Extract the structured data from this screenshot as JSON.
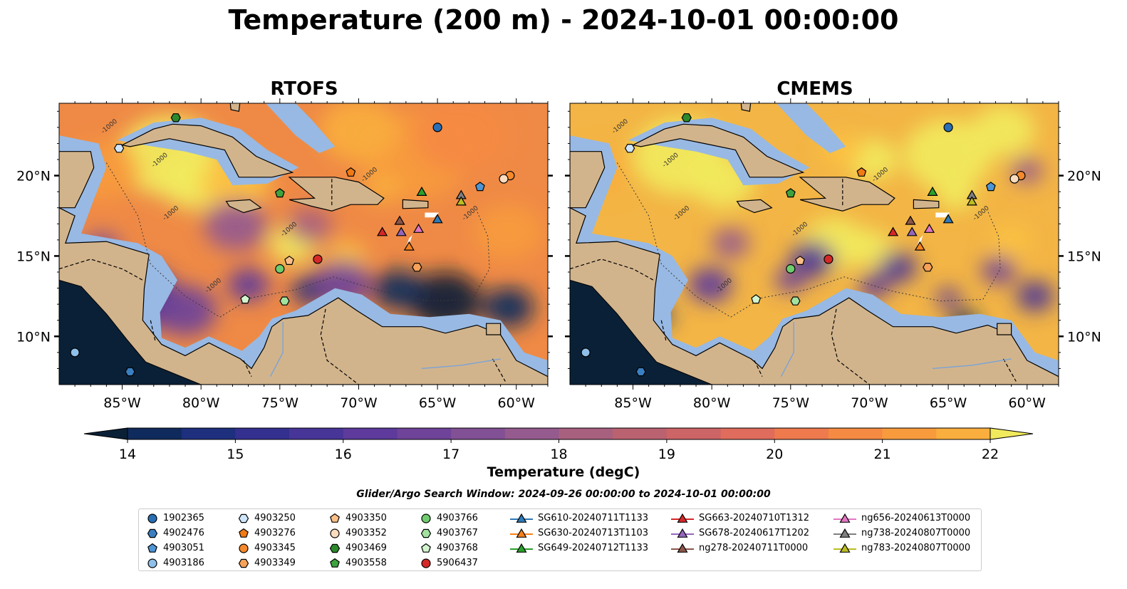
{
  "suptitle": "Temperature (200 m) - 2024-10-01 00:00:00",
  "panels": [
    {
      "title": "RTOFS",
      "variant": "rtofs"
    },
    {
      "title": "CMEMS",
      "variant": "cmems"
    }
  ],
  "axes": {
    "lon_ticks": [
      "85°W",
      "80°W",
      "75°W",
      "70°W",
      "65°W",
      "60°W"
    ],
    "lat_ticks": [
      "20°N",
      "15°N",
      "10°N"
    ],
    "lon_range": [
      -89,
      -58
    ],
    "lat_range": [
      7,
      24.5
    ],
    "contour_label": "-1000"
  },
  "colorbar": {
    "label": "Temperature (degC)",
    "min": 14,
    "max": 22,
    "step": 0.5,
    "tick_labels": [
      "14",
      "15",
      "16",
      "17",
      "18",
      "19",
      "20",
      "21",
      "22"
    ],
    "colors": [
      "#0a2036",
      "#0f2a5c",
      "#1e2f7e",
      "#33308f",
      "#483598",
      "#5d3a9b",
      "#6e4399",
      "#825095",
      "#955a8e",
      "#a8607f",
      "#bb6271",
      "#cd6466",
      "#df6c5c",
      "#ee7a4e",
      "#f58a43",
      "#f79b3d",
      "#f9ae3d",
      "#fbc142",
      "#f1ea5d"
    ]
  },
  "search_window": "Glider/Argo Search Window: 2024-09-26 00:00:00 to 2024-10-01 00:00:00",
  "colors": {
    "land": "#d2b48c",
    "shelf": "#98b9e3",
    "pacific": "#0a2036",
    "border": "#000000"
  },
  "legend": [
    {
      "label": "1902365",
      "marker": "circle",
      "color": "#2a6fb6"
    },
    {
      "label": "4902476",
      "marker": "hexagon",
      "color": "#3a7fc1"
    },
    {
      "label": "4903051",
      "marker": "pentagon",
      "color": "#4e95d6"
    },
    {
      "label": "4903186",
      "marker": "circle",
      "color": "#8fc0ea"
    },
    {
      "label": "4903250",
      "marker": "hexagon",
      "color": "#cfe6fa"
    },
    {
      "label": "4903276",
      "marker": "pentagon",
      "color": "#f07a14"
    },
    {
      "label": "4903345",
      "marker": "circle",
      "color": "#f5892b"
    },
    {
      "label": "4903349",
      "marker": "hexagon",
      "color": "#f7a259"
    },
    {
      "label": "4903350",
      "marker": "pentagon",
      "color": "#fbbf86"
    },
    {
      "label": "4903352",
      "marker": "circle",
      "color": "#fcdcbf"
    },
    {
      "label": "4903469",
      "marker": "hexagon",
      "color": "#2c8a2c"
    },
    {
      "label": "4903558",
      "marker": "pentagon",
      "color": "#3ea33e"
    },
    {
      "label": "4903766",
      "marker": "circle",
      "color": "#6fcc6f"
    },
    {
      "label": "4903767",
      "marker": "hexagon",
      "color": "#a2e2a0"
    },
    {
      "label": "4903768",
      "marker": "pentagon",
      "color": "#d2f5cf"
    },
    {
      "label": "5906437",
      "marker": "circle",
      "color": "#d62828"
    },
    {
      "label": "SG610-20240711T1133",
      "marker": "triangle",
      "color": "#2f7ab8"
    },
    {
      "label": "SG630-20240713T1103",
      "marker": "triangle",
      "color": "#f7821b"
    },
    {
      "label": "SG649-20240712T1133",
      "marker": "triangle",
      "color": "#2ca02c"
    },
    {
      "label": "SG663-20240710T1312",
      "marker": "triangle",
      "color": "#d62728"
    },
    {
      "label": "SG678-20240617T1202",
      "marker": "triangle",
      "color": "#9467bd"
    },
    {
      "label": "ng278-20240711T0000",
      "marker": "triangle",
      "color": "#8c564b"
    },
    {
      "label": "ng656-20240613T0000",
      "marker": "triangle",
      "color": "#e377c2"
    },
    {
      "label": "ng738-20240807T0000",
      "marker": "triangle",
      "color": "#7f7f7f"
    },
    {
      "label": "ng783-20240807T0000",
      "marker": "triangle",
      "color": "#bcbd22"
    }
  ],
  "observations": [
    {
      "id": "1902365",
      "lon": -65.0,
      "lat": 23.0
    },
    {
      "id": "4902476",
      "lon": -84.5,
      "lat": 7.8
    },
    {
      "id": "4903051",
      "lon": -62.3,
      "lat": 19.3
    },
    {
      "id": "4903186",
      "lon": -88.0,
      "lat": 9.0
    },
    {
      "id": "4903250",
      "lon": -85.2,
      "lat": 21.7
    },
    {
      "id": "4903276",
      "lon": -70.5,
      "lat": 20.2
    },
    {
      "id": "4903345",
      "lon": -60.4,
      "lat": 20.0
    },
    {
      "id": "4903349",
      "lon": -66.3,
      "lat": 14.3
    },
    {
      "id": "4903350",
      "lon": -74.4,
      "lat": 14.7
    },
    {
      "id": "4903352",
      "lon": -60.8,
      "lat": 19.8
    },
    {
      "id": "4903469",
      "lon": -81.6,
      "lat": 23.6
    },
    {
      "id": "4903558",
      "lon": -75.0,
      "lat": 18.9
    },
    {
      "id": "4903766",
      "lon": -75.0,
      "lat": 14.2
    },
    {
      "id": "4903767",
      "lon": -74.7,
      "lat": 12.2
    },
    {
      "id": "4903768",
      "lon": -77.2,
      "lat": 12.3
    },
    {
      "id": "5906437",
      "lon": -72.6,
      "lat": 14.8
    },
    {
      "id": "SG610-20240711T1133",
      "lon": -65.0,
      "lat": 17.3
    },
    {
      "id": "SG630-20240713T1103",
      "lon": -66.8,
      "lat": 15.6
    },
    {
      "id": "SG649-20240712T1133",
      "lon": -66.0,
      "lat": 19.0
    },
    {
      "id": "SG663-20240710T1312",
      "lon": -68.5,
      "lat": 16.5
    },
    {
      "id": "SG678-20240617T1202",
      "lon": -67.3,
      "lat": 16.5
    },
    {
      "id": "ng278-20240711T0000",
      "lon": -67.4,
      "lat": 17.2
    },
    {
      "id": "ng656-20240613T0000",
      "lon": -66.2,
      "lat": 16.7
    },
    {
      "id": "ng738-20240807T0000",
      "lon": -63.5,
      "lat": 18.8
    },
    {
      "id": "ng783-20240807T0000",
      "lon": -63.5,
      "lat": 18.4
    }
  ]
}
